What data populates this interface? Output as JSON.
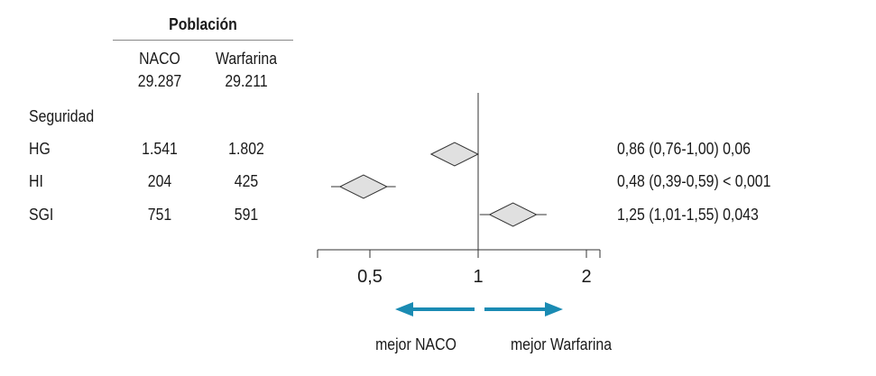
{
  "table": {
    "group_header": "Población",
    "columns": [
      {
        "name": "NACO",
        "n": "29.287"
      },
      {
        "name": "Warfarina",
        "n": "29.211"
      }
    ],
    "section_label": "Seguridad",
    "rows": [
      {
        "label": "HG",
        "naco": "1.541",
        "warfarina": "1.802",
        "result": "0,86 (0,76-1,00) 0,06"
      },
      {
        "label": "HI",
        "naco": "204",
        "warfarina": "425",
        "result": "0,48 (0,39-0,59) < 0,001"
      },
      {
        "label": "SGI",
        "naco": "751",
        "warfarina": "591",
        "result": "1,25 (1,01-1,55) 0,043"
      }
    ]
  },
  "chart_data": {
    "type": "scatter",
    "subtype": "forest-plot",
    "x_scale": "log",
    "reference_line": 1,
    "xticks": [
      0.5,
      1,
      2
    ],
    "xtick_labels": [
      "0,5",
      "1",
      "2"
    ],
    "xlim": [
      0.36,
      2.4
    ],
    "categories": [
      "HG",
      "HI",
      "SGI"
    ],
    "series": [
      {
        "points": [
          {
            "category": "HG",
            "estimate": 0.86,
            "ci_low": 0.76,
            "ci_high": 1.0,
            "p": "0,06"
          },
          {
            "category": "HI",
            "estimate": 0.48,
            "ci_low": 0.39,
            "ci_high": 0.59,
            "p": "< 0,001"
          },
          {
            "category": "SGI",
            "estimate": 1.25,
            "ci_low": 1.01,
            "ci_high": 1.55,
            "p": "0,043"
          }
        ]
      }
    ],
    "direction_labels": {
      "left": "mejor NACO",
      "right": "mejor Warfarina"
    },
    "arrow_color": "#1a8bb3",
    "marker_fill": "#e0e0e0",
    "marker_stroke": "#333333"
  }
}
